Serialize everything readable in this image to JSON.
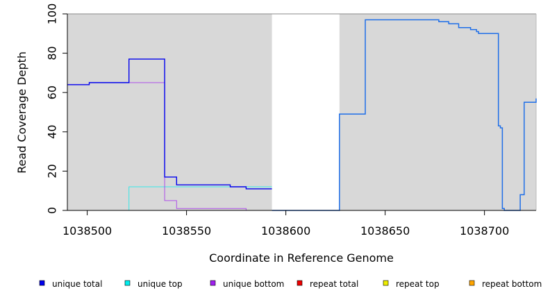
{
  "chart_data": {
    "type": "line",
    "title": "",
    "xlabel": "Coordinate in Reference Genome",
    "ylabel": "Read Coverage Depth",
    "xlim": [
      1038490,
      1038726
    ],
    "ylim": [
      0,
      100
    ],
    "x_ticks": [
      1038500,
      1038550,
      1038600,
      1038650,
      1038700
    ],
    "y_ticks": [
      0,
      20,
      40,
      60,
      80,
      100
    ],
    "shaded_regions": [
      {
        "x": [
          1038490,
          1038593
        ],
        "color": "#d8d8d8"
      },
      {
        "x": [
          1038627,
          1038726
        ],
        "color": "#d8d8d8"
      }
    ],
    "series": [
      {
        "name": "unique total",
        "color": "#0000ee",
        "x": [
          1038490,
          1038501,
          1038511,
          1038521,
          1038539,
          1038545,
          1038572,
          1038580,
          1038593
        ],
        "y": [
          64,
          65,
          65,
          77,
          17,
          13,
          12,
          11,
          11
        ]
      },
      {
        "name": "unique top",
        "color": "#00eeee",
        "x": [
          1038490,
          1038521,
          1038593
        ],
        "y": [
          0,
          12,
          12
        ]
      },
      {
        "name": "unique bottom",
        "color": "#a020f0",
        "x": [
          1038490,
          1038501,
          1038511,
          1038521,
          1038539,
          1038545,
          1038572,
          1038580,
          1038593
        ],
        "y": [
          64,
          65,
          65,
          65,
          5,
          1,
          1,
          0,
          0
        ]
      },
      {
        "name": "repeat total",
        "color": "#ee0000",
        "x": [
          1038490,
          1038726
        ],
        "y": [
          0,
          0
        ]
      },
      {
        "name": "repeat top",
        "color": "#eeee00",
        "x": [
          1038490,
          1038726
        ],
        "y": [
          0,
          0
        ]
      },
      {
        "name": "repeat bottom",
        "color": "#ffa500",
        "x": [
          1038490,
          1038521,
          1038580
        ],
        "y": [
          0,
          0,
          0
        ]
      }
    ],
    "overlay_lines": [
      {
        "series_name": "",
        "color": "#1e6ee8",
        "x": [
          1038593,
          1038627,
          1038640,
          1038670,
          1038677,
          1038682,
          1038687,
          1038693,
          1038696,
          1038697,
          1038707,
          1038708,
          1038709,
          1038710,
          1038715,
          1038718,
          1038719,
          1038720,
          1038726
        ],
        "y": [
          0,
          49,
          97,
          97,
          96,
          95,
          93,
          92,
          91,
          90,
          43,
          42,
          1,
          0,
          0,
          8,
          8,
          55,
          57
        ]
      }
    ],
    "legend_position": "bottom"
  },
  "legend": {
    "items": [
      {
        "label": "unique total",
        "color": "#0000ee"
      },
      {
        "label": "unique top",
        "color": "#00eeee"
      },
      {
        "label": "unique bottom",
        "color": "#a020f0"
      },
      {
        "label": "repeat total",
        "color": "#ee0000"
      },
      {
        "label": "repeat top",
        "color": "#eeee00"
      },
      {
        "label": "repeat bottom",
        "color": "#ffa500"
      }
    ]
  }
}
